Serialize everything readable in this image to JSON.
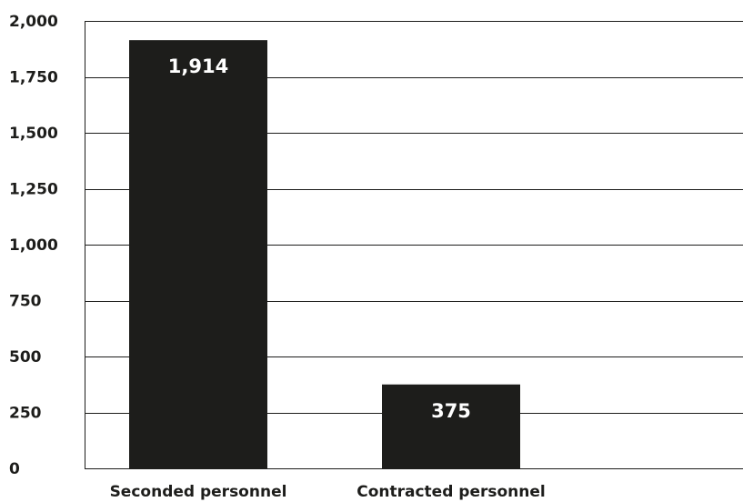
{
  "chart_data": {
    "type": "bar",
    "categories": [
      "Seconded personnel",
      "Contracted personnel"
    ],
    "values": [
      1914,
      375
    ],
    "data_labels": [
      "1,914",
      "375"
    ],
    "title": "",
    "xlabel": "",
    "ylabel": "",
    "ylim": [
      0,
      2000
    ],
    "yticks": [
      0,
      250,
      500,
      750,
      1000,
      1250,
      1500,
      1750,
      2000
    ],
    "ytick_labels": [
      "0",
      "250",
      "500",
      "750",
      "1,000",
      "1,250",
      "1,500",
      "1,750",
      "2,000"
    ],
    "grid": true,
    "legend": "none",
    "colors": {
      "bar": "#1d1d1b",
      "grid": "#1d1d1b",
      "data_label": "#ffffff",
      "text": "#1d1d1b"
    }
  }
}
